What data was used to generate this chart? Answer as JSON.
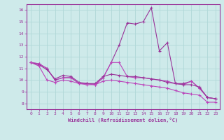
{
  "xlabel": "Windchill (Refroidissement éolien,°C)",
  "xlim": [
    -0.5,
    23.5
  ],
  "ylim": [
    7.5,
    16.5
  ],
  "yticks": [
    8,
    9,
    10,
    11,
    12,
    13,
    14,
    15,
    16
  ],
  "xticks": [
    0,
    1,
    2,
    3,
    4,
    5,
    6,
    7,
    8,
    9,
    10,
    11,
    12,
    13,
    14,
    15,
    16,
    17,
    18,
    19,
    20,
    21,
    22,
    23
  ],
  "bg_color": "#ceeaea",
  "grid_color": "#b0d8d8",
  "line_color1": "#993399",
  "line_color2": "#bb44bb",
  "series1": [
    11.5,
    11.4,
    11.0,
    10.0,
    10.2,
    10.2,
    9.7,
    9.7,
    9.6,
    10.2,
    11.5,
    13.0,
    14.9,
    14.8,
    15.0,
    16.2,
    12.5,
    13.2,
    9.7,
    9.7,
    9.9,
    9.3,
    8.5,
    8.4
  ],
  "series2": [
    11.5,
    11.4,
    11.0,
    10.0,
    10.2,
    10.2,
    9.7,
    9.7,
    9.6,
    10.2,
    11.5,
    11.5,
    10.3,
    10.2,
    10.2,
    10.1,
    10.0,
    9.9,
    9.7,
    9.6,
    9.9,
    9.3,
    8.5,
    8.4
  ],
  "series3": [
    11.5,
    11.3,
    10.9,
    10.1,
    10.4,
    10.3,
    9.8,
    9.7,
    9.7,
    10.3,
    10.5,
    10.4,
    10.3,
    10.3,
    10.2,
    10.1,
    10.0,
    9.8,
    9.7,
    9.6,
    9.6,
    9.4,
    8.5,
    8.4
  ],
  "series4": [
    11.5,
    11.2,
    10.0,
    9.8,
    10.0,
    9.9,
    9.7,
    9.6,
    9.6,
    9.9,
    10.0,
    9.9,
    9.8,
    9.7,
    9.6,
    9.5,
    9.4,
    9.3,
    9.1,
    8.9,
    8.8,
    8.7,
    8.1,
    8.1
  ]
}
